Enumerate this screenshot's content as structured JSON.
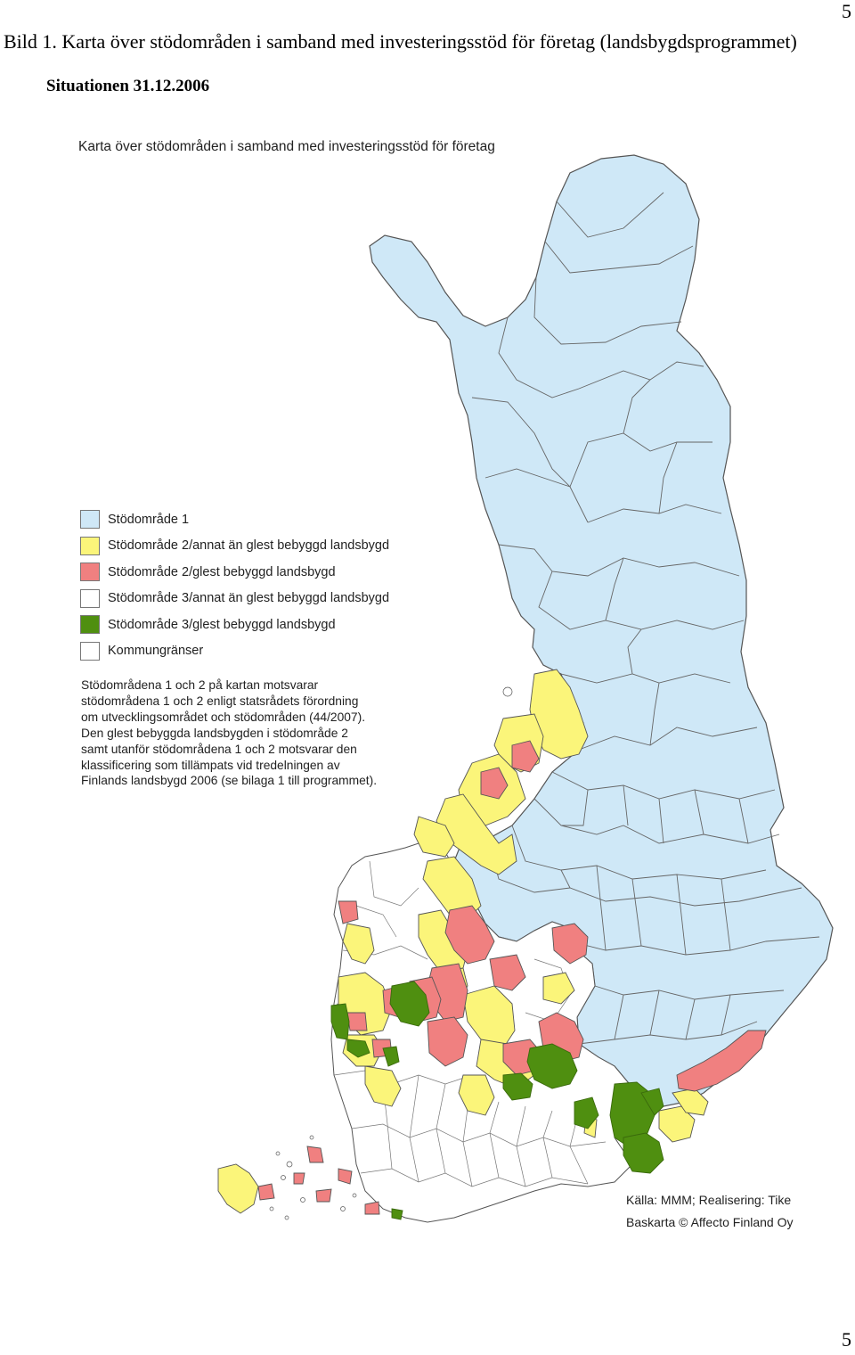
{
  "page": {
    "number_top": "5",
    "number_bottom": "5",
    "caption": "Bild 1. Karta över stödområden i samband med investeringsstöd för företag (landsbygdsprogrammet)"
  },
  "map": {
    "situation": "Situationen 31.12.2006",
    "title": "Karta över stödområden i samband med investeringsstöd för företag",
    "legend": [
      {
        "label": "Stödområde 1",
        "color": "#cfe8f7"
      },
      {
        "label": "Stödområde 2/annat än glest bebyggd landsbygd",
        "color": "#fbf57a"
      },
      {
        "label": "Stödområde 2/glest bebyggd landsbygd",
        "color": "#f08080"
      },
      {
        "label": "Stödområde 3/annat än glest bebyggd landsbygd",
        "color": "#ffffff"
      },
      {
        "label": "Stödområde 3/glest bebyggd landsbygd",
        "color": "#4f8f10"
      },
      {
        "label": "Kommungränser",
        "color": "#ffffff"
      }
    ],
    "note_lines": [
      "Stödområdena 1 och 2 på kartan motsvarar",
      "stödområdena 1 och 2 enligt statsrådets förordning",
      "om utvecklingsområdet och stödområden (44/2007).",
      "Den glest bebyggda landsbygden i stödområde 2",
      "samt utanför stödområdena 1 och 2 motsvarar den",
      "klassificering som tillämpats vid tredelningen av",
      "Finlands landsbygd 2006 (se bilaga 1 till programmet)."
    ],
    "source_lines": [
      "Källa: MMM; Realisering: Tike",
      "Baskarta © Affecto Finland Oy"
    ],
    "colors": {
      "zone1": "#cfe8f7",
      "zone2_other": "#fbf57a",
      "zone2_sparse": "#f08080",
      "zone3_other": "#ffffff",
      "zone3_sparse": "#4f8f10",
      "border": "#555555"
    }
  }
}
